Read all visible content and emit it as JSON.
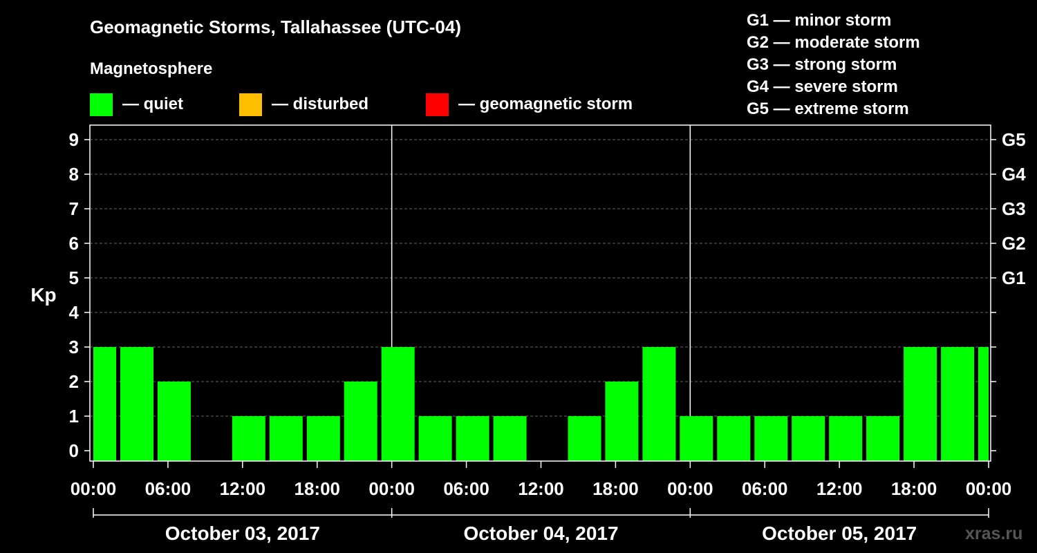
{
  "chart_data": {
    "type": "bar",
    "title": "Geomagnetic Storms, Tallahassee (UTC-04)",
    "legend_title": "Magnetosphere",
    "legend": [
      {
        "label": "— quiet",
        "color": "#00ff00"
      },
      {
        "label": "— disturbed",
        "color": "#ffbf00"
      },
      {
        "label": "— geomagnetic storm",
        "color": "#ff0000"
      }
    ],
    "g_scale": [
      "G1 — minor storm",
      "G2 — moderate storm",
      "G3 — strong storm",
      "G4 — severe storm",
      "G5 — extreme storm"
    ],
    "ylabel": "Kp",
    "ylim": [
      0,
      9
    ],
    "y_ticks": [
      "0",
      "1",
      "2",
      "3",
      "4",
      "5",
      "6",
      "7",
      "8",
      "9"
    ],
    "right_ticks": [
      {
        "kp": 5,
        "label": "G1"
      },
      {
        "kp": 6,
        "label": "G2"
      },
      {
        "kp": 7,
        "label": "G3"
      },
      {
        "kp": 8,
        "label": "G4"
      },
      {
        "kp": 9,
        "label": "G5"
      }
    ],
    "x_range_hours": [
      0,
      72
    ],
    "x_ticks": [
      "00:00",
      "06:00",
      "12:00",
      "18:00",
      "00:00",
      "06:00",
      "12:00",
      "18:00",
      "00:00",
      "06:00",
      "12:00",
      "18:00",
      "00:00"
    ],
    "days": [
      "October 03, 2017",
      "October 04, 2017",
      "October 05, 2017"
    ],
    "bars": [
      {
        "start": 0,
        "end": 2,
        "kp": 3
      },
      {
        "start": 2,
        "end": 5,
        "kp": 3
      },
      {
        "start": 5,
        "end": 8,
        "kp": 2
      },
      {
        "start": 8,
        "end": 11,
        "kp": 0
      },
      {
        "start": 11,
        "end": 14,
        "kp": 1
      },
      {
        "start": 14,
        "end": 17,
        "kp": 1
      },
      {
        "start": 17,
        "end": 20,
        "kp": 1
      },
      {
        "start": 20,
        "end": 23,
        "kp": 2
      },
      {
        "start": 23,
        "end": 26,
        "kp": 3
      },
      {
        "start": 26,
        "end": 29,
        "kp": 1
      },
      {
        "start": 29,
        "end": 32,
        "kp": 1
      },
      {
        "start": 32,
        "end": 35,
        "kp": 1
      },
      {
        "start": 35,
        "end": 38,
        "kp": 0
      },
      {
        "start": 38,
        "end": 41,
        "kp": 1
      },
      {
        "start": 41,
        "end": 44,
        "kp": 2
      },
      {
        "start": 44,
        "end": 47,
        "kp": 3
      },
      {
        "start": 47,
        "end": 50,
        "kp": 1
      },
      {
        "start": 50,
        "end": 53,
        "kp": 1
      },
      {
        "start": 53,
        "end": 56,
        "kp": 1
      },
      {
        "start": 56,
        "end": 59,
        "kp": 1
      },
      {
        "start": 59,
        "end": 62,
        "kp": 1
      },
      {
        "start": 62,
        "end": 65,
        "kp": 1
      },
      {
        "start": 65,
        "end": 68,
        "kp": 3
      },
      {
        "start": 68,
        "end": 71,
        "kp": 3
      },
      {
        "start": 71,
        "end": 72,
        "kp": 3
      }
    ],
    "bar_color": "#00ff00"
  },
  "watermark": "xras.ru"
}
